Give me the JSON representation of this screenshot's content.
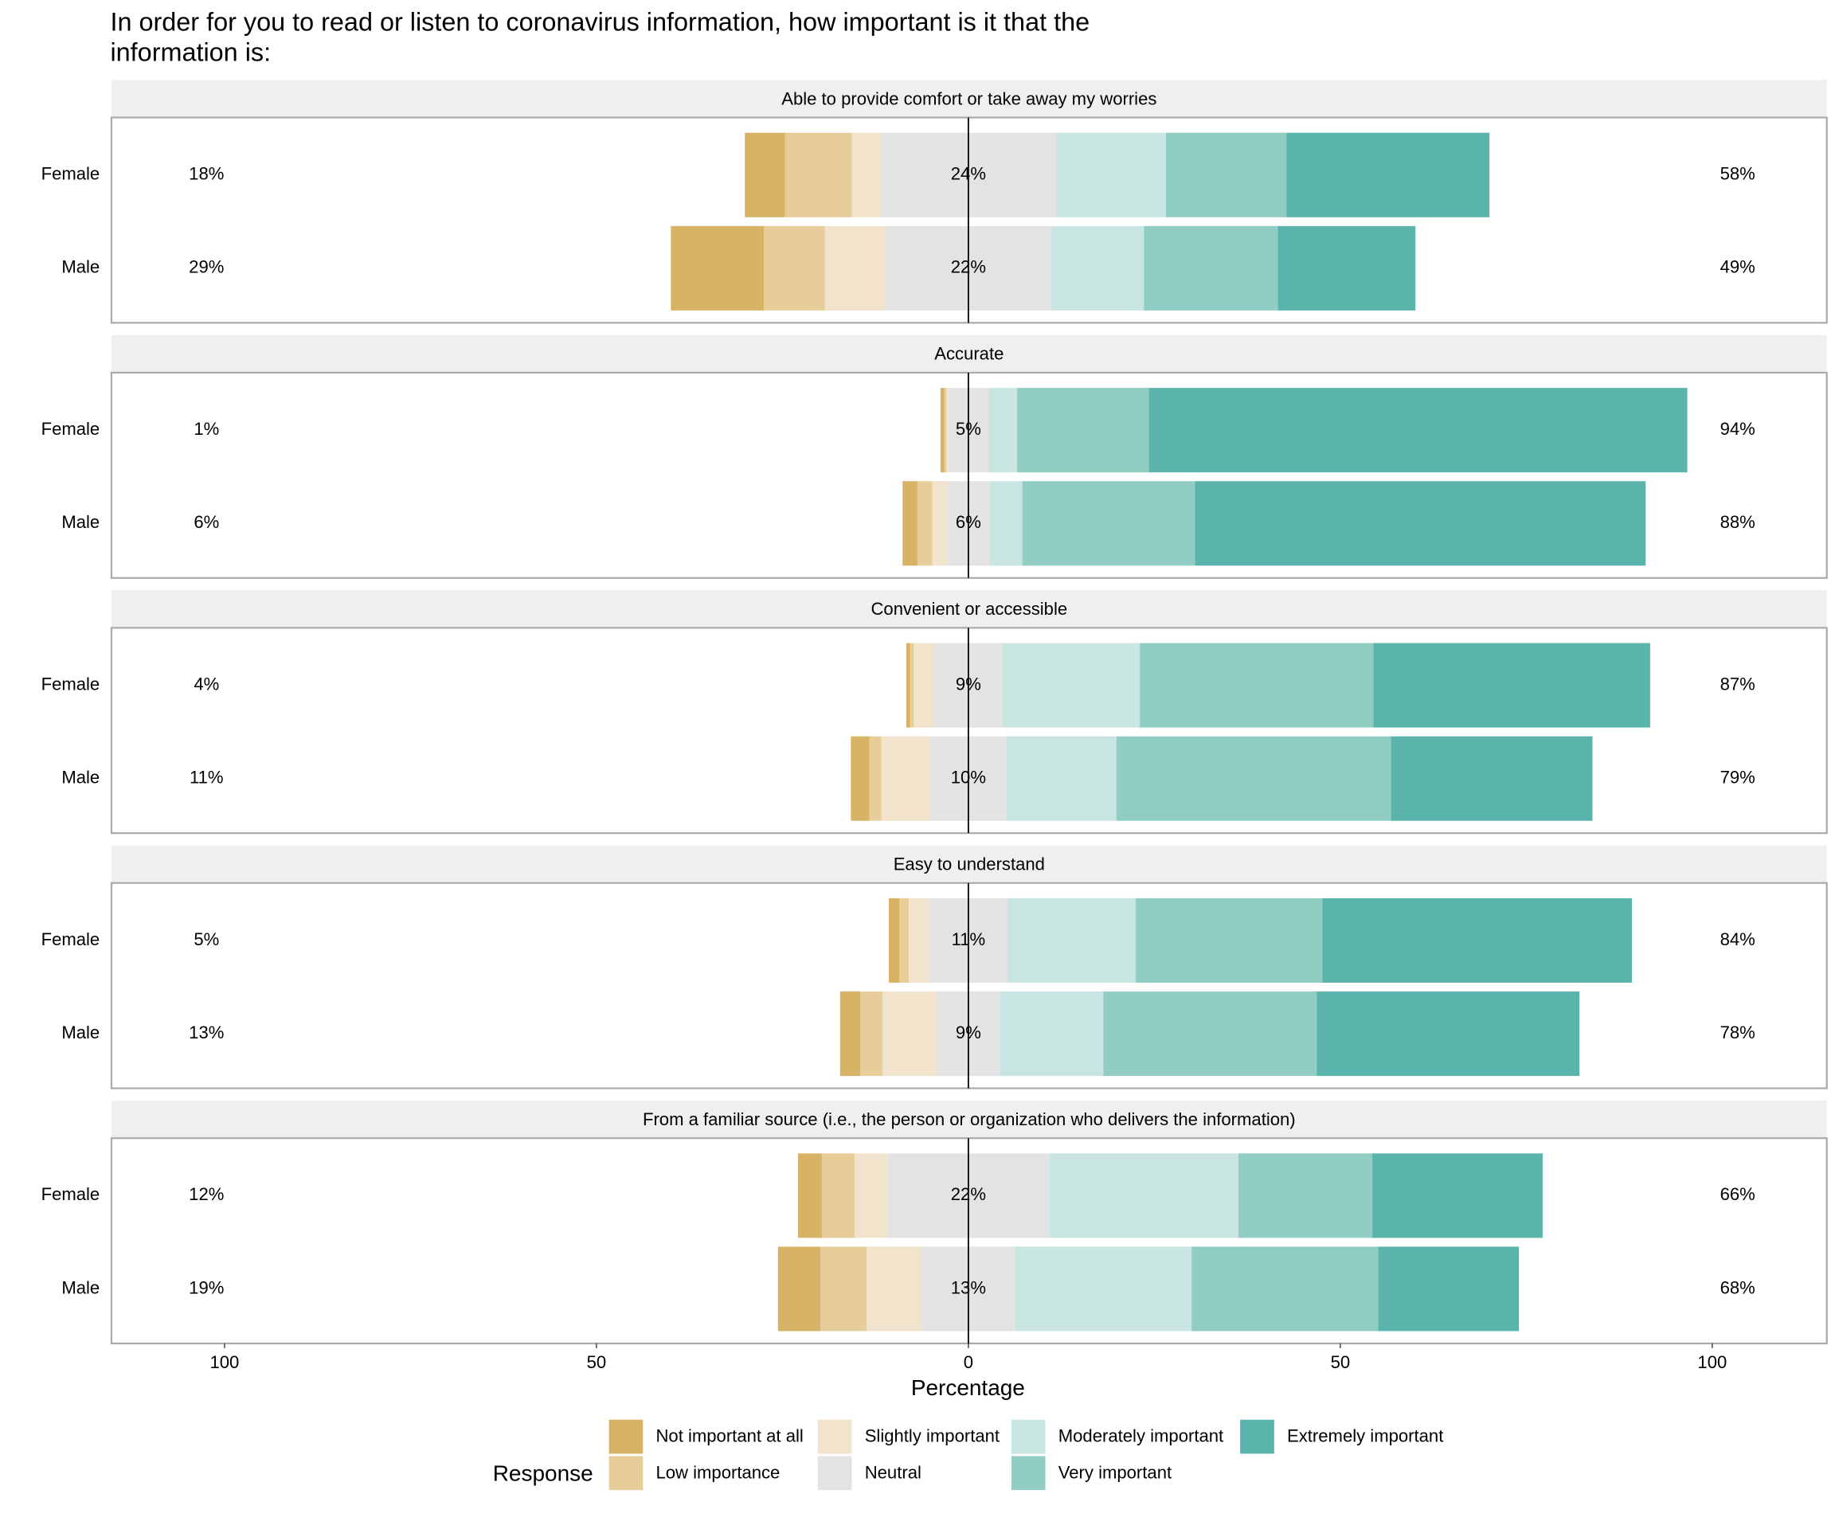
{
  "chart_data": {
    "type": "likert",
    "title": [
      "In order for you to read or listen to coronavirus information, how important is it that the",
      "information is:"
    ],
    "x_label": "Percentage",
    "xlim": [
      -115.2,
      115.4
    ],
    "xticks": [
      {
        "value": -100,
        "label": "100"
      },
      {
        "value": -50,
        "label": "50"
      },
      0,
      50,
      {
        "value": 100,
        "label": "100"
      }
    ],
    "legend_title": "Response",
    "responses": [
      {
        "name": "Not important at all",
        "color": "#d8b365",
        "side": "low"
      },
      {
        "name": "Low importance",
        "color": "#e6cd99",
        "side": "low"
      },
      {
        "name": "Slightly important",
        "color": "#f2e4cc",
        "side": "low"
      },
      {
        "name": "Neutral",
        "color": "#e3e3e3",
        "side": "neutral"
      },
      {
        "name": "Moderately important",
        "color": "#c8e5e2",
        "side": "high"
      },
      {
        "name": "Very important",
        "color": "#92cdc4",
        "side": "high"
      },
      {
        "name": "Extremely important",
        "color": "#5ab4ac",
        "side": "high"
      }
    ],
    "facets": [
      {
        "title": "Able to provide comfort or take away my worries",
        "categories": [
          "Female",
          "Male"
        ],
        "values": [
          [
            5.4,
            9.0,
            3.8,
            23.7,
            14.7,
            16.2,
            27.3
          ],
          [
            12.5,
            8.2,
            8.2,
            22.2,
            12.5,
            18.0,
            18.5
          ]
        ],
        "low_totals": {
          "values": [
            18,
            29
          ],
          "value_labels": [
            "18%",
            "29%"
          ]
        },
        "neutral_totals": {
          "values": [
            24,
            22
          ],
          "value_labels": [
            "24%",
            "22%"
          ]
        },
        "high_totals": {
          "values": [
            58,
            49
          ],
          "value_labels": [
            "58%",
            "49%"
          ]
        }
      },
      {
        "title": "Accurate",
        "categories": [
          "Female",
          "Male"
        ],
        "values": [
          [
            0.5,
            0.3,
            0.2,
            5.5,
            3.8,
            17.7,
            72.4
          ],
          [
            2.0,
            2.0,
            2.0,
            5.7,
            4.4,
            23.2,
            60.6
          ]
        ],
        "low_totals": {
          "values": [
            1,
            6
          ],
          "value_labels": [
            "1%",
            "6%"
          ]
        },
        "neutral_totals": {
          "values": [
            5,
            6
          ],
          "value_labels": [
            "5%",
            "6%"
          ]
        },
        "high_totals": {
          "values": [
            94,
            88
          ],
          "value_labels": [
            "94%",
            "88%"
          ]
        }
      },
      {
        "title": "Convenient or accessible",
        "categories": [
          "Female",
          "Male"
        ],
        "values": [
          [
            0.5,
            0.5,
            2.8,
            9.1,
            18.5,
            31.4,
            37.2
          ],
          [
            2.5,
            1.6,
            6.6,
            10.2,
            14.8,
            36.9,
            27.1
          ]
        ],
        "low_totals": {
          "values": [
            4,
            11
          ],
          "value_labels": [
            "4%",
            "11%"
          ]
        },
        "neutral_totals": {
          "values": [
            9,
            10
          ],
          "value_labels": [
            "9%",
            "10%"
          ]
        },
        "high_totals": {
          "values": [
            87,
            79
          ],
          "value_labels": [
            "87%",
            "79%"
          ]
        }
      },
      {
        "title": "Easy to understand",
        "categories": [
          "Female",
          "Male"
        ],
        "values": [
          [
            1.4,
            1.3,
            2.7,
            10.6,
            17.2,
            25.1,
            41.6
          ],
          [
            2.7,
            3.0,
            7.3,
            8.5,
            13.9,
            28.7,
            35.3
          ]
        ],
        "low_totals": {
          "values": [
            5,
            13
          ],
          "value_labels": [
            "5%",
            "13%"
          ]
        },
        "neutral_totals": {
          "values": [
            11,
            9
          ],
          "value_labels": [
            "11%",
            "9%"
          ]
        },
        "high_totals": {
          "values": [
            84,
            78
          ],
          "value_labels": [
            "84%",
            "78%"
          ]
        }
      },
      {
        "title": "From a familiar source (i.e., the person or organization who delivers the information)",
        "categories": [
          "Female",
          "Male"
        ],
        "values": [
          [
            3.2,
            4.4,
            4.4,
            21.8,
            25.4,
            18.0,
            22.9
          ],
          [
            5.7,
            6.2,
            7.4,
            12.6,
            23.7,
            25.1,
            18.9
          ]
        ],
        "low_totals": {
          "values": [
            12,
            19
          ],
          "value_labels": [
            "12%",
            "19%"
          ]
        },
        "neutral_totals": {
          "values": [
            22,
            13
          ],
          "value_labels": [
            "22%",
            "13%"
          ]
        },
        "high_totals": {
          "values": [
            66,
            68
          ],
          "value_labels": [
            "66%",
            "68%"
          ]
        }
      }
    ]
  }
}
